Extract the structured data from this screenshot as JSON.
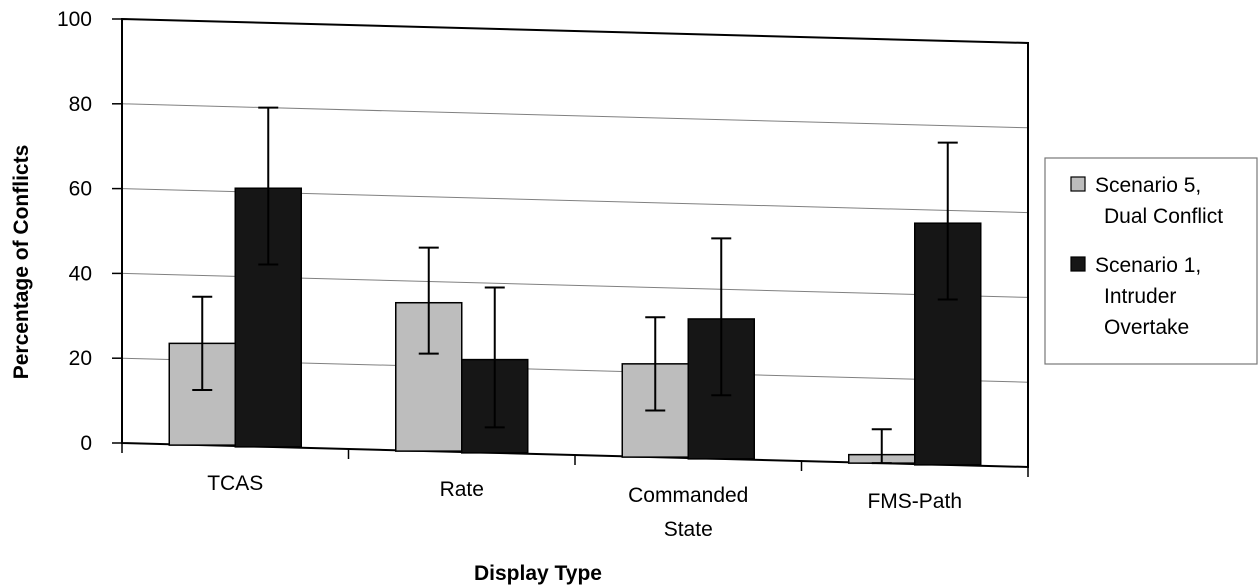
{
  "chart_data": {
    "type": "bar",
    "xlabel": "Display Type",
    "ylabel": "Percentage of Conflicts",
    "ylim": [
      0,
      100
    ],
    "yticks": [
      0,
      20,
      40,
      60,
      80,
      100
    ],
    "grid": true,
    "legend_position": "right",
    "categories": [
      [
        "TCAS"
      ],
      [
        "Rate"
      ],
      [
        "Commanded",
        "State"
      ],
      [
        "FMS-Path"
      ]
    ],
    "series": [
      {
        "name": [
          "Scenario 5,",
          "Dual Conflict"
        ],
        "color": "#bdbdbd",
        "values": [
          24,
          35,
          22,
          2
        ],
        "error_upper": [
          35,
          48,
          33,
          8
        ],
        "error_lower": [
          13,
          23,
          11,
          0
        ]
      },
      {
        "name": [
          "Scenario 1,",
          "Intruder",
          "Overtake"
        ],
        "color": "#161616",
        "values": [
          61,
          22,
          33,
          57
        ],
        "error_upper": [
          80,
          39,
          52,
          76
        ],
        "error_lower": [
          43,
          6,
          15,
          39
        ]
      }
    ]
  }
}
